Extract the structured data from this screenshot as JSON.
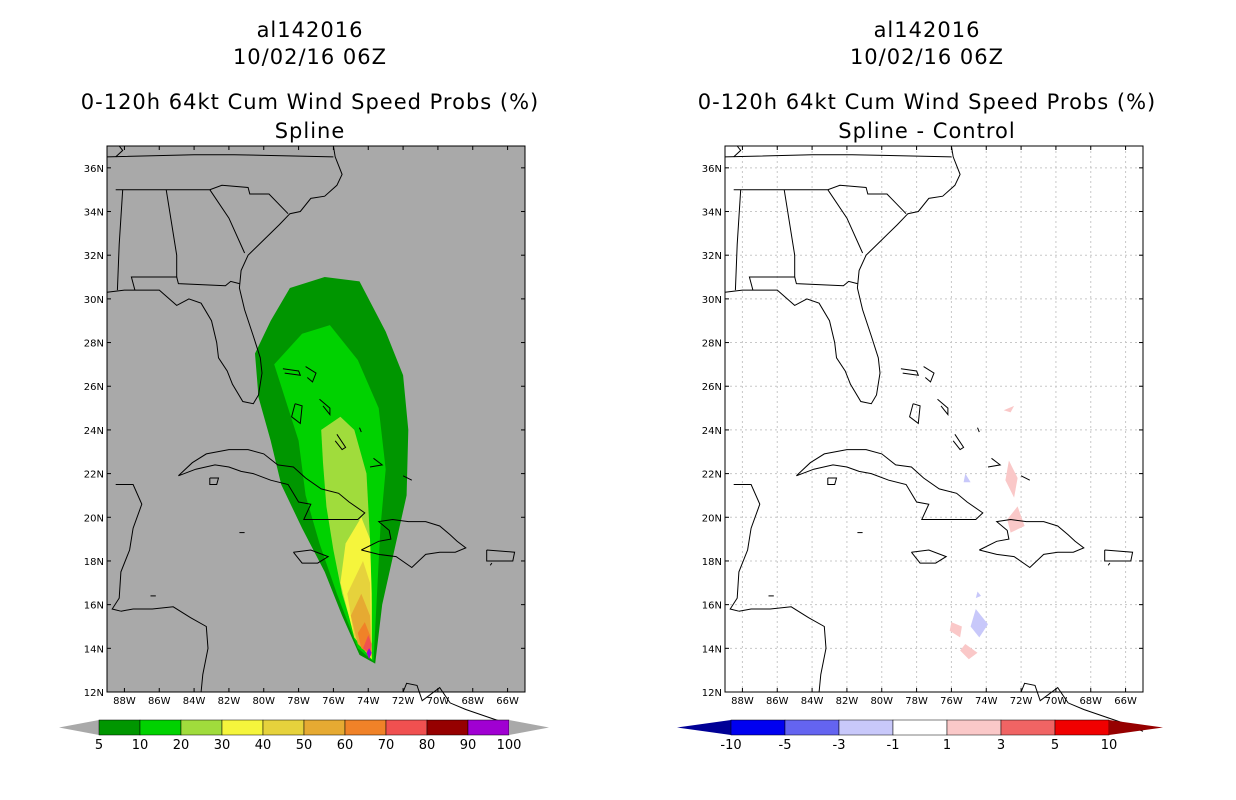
{
  "colors": {
    "ocean_bg": "#a9a9a9",
    "land_line": "#000000",
    "grid": "#c8c8c8"
  },
  "chart_data": [
    {
      "type": "heatmap",
      "title_lines": [
        "al142016",
        "10/02/16 06Z",
        "0-120h 64kt Cum Wind Speed Probs (%)",
        "Spline"
      ],
      "x_ticks": [
        "88W",
        "86W",
        "84W",
        "82W",
        "80W",
        "78W",
        "76W",
        "74W",
        "72W",
        "70W",
        "68W",
        "66W"
      ],
      "y_ticks": [
        "12N",
        "14N",
        "16N",
        "18N",
        "20N",
        "22N",
        "24N",
        "26N",
        "28N",
        "30N",
        "32N",
        "34N",
        "36N"
      ],
      "xlim": [
        -89,
        -65
      ],
      "ylim": [
        12,
        37
      ],
      "colorbar": {
        "labels": [
          "5",
          "10",
          "20",
          "30",
          "40",
          "50",
          "60",
          "70",
          "80",
          "90",
          "100"
        ],
        "colors": [
          "#009600",
          "#00d200",
          "#a0dc3c",
          "#f5f53c",
          "#e6d23c",
          "#e6aa32",
          "#f08228",
          "#f05050",
          "#960000",
          "#a000d2"
        ]
      },
      "contours": [
        {
          "level": 5,
          "color": "#009600",
          "points": [
            [
              -80.5,
              27.5
            ],
            [
              -79.6,
              29.0
            ],
            [
              -78.5,
              30.5
            ],
            [
              -76.5,
              31.0
            ],
            [
              -74.5,
              30.8
            ],
            [
              -73.0,
              28.5
            ],
            [
              -72.0,
              26.5
            ],
            [
              -71.7,
              24.0
            ],
            [
              -71.8,
              21.0
            ],
            [
              -72.5,
              18.5
            ],
            [
              -73.2,
              16.0
            ],
            [
              -73.6,
              13.3
            ],
            [
              -74.5,
              13.7
            ],
            [
              -75.5,
              15.5
            ],
            [
              -76.5,
              17.5
            ],
            [
              -77.8,
              19.5
            ],
            [
              -79.0,
              21.5
            ],
            [
              -79.6,
              23.5
            ],
            [
              -80.3,
              25.5
            ]
          ]
        },
        {
          "level": 10,
          "color": "#00d200",
          "points": [
            [
              -79.4,
              27.0
            ],
            [
              -77.8,
              28.4
            ],
            [
              -76.2,
              28.8
            ],
            [
              -74.6,
              27.2
            ],
            [
              -73.4,
              25.0
            ],
            [
              -73.0,
              22.2
            ],
            [
              -73.3,
              19.5
            ],
            [
              -73.5,
              16.5
            ],
            [
              -73.7,
              13.4
            ],
            [
              -74.6,
              14.0
            ],
            [
              -75.8,
              16.5
            ],
            [
              -76.8,
              18.8
            ],
            [
              -77.6,
              21.0
            ],
            [
              -78.0,
              23.5
            ],
            [
              -78.8,
              25.5
            ]
          ]
        },
        {
          "level": 20,
          "color": "#a0dc3c",
          "points": [
            [
              -76.7,
              24.0
            ],
            [
              -75.6,
              24.6
            ],
            [
              -74.8,
              24.0
            ],
            [
              -74.1,
              22.0
            ],
            [
              -73.9,
              19.0
            ],
            [
              -73.8,
              16.0
            ],
            [
              -73.8,
              13.5
            ],
            [
              -74.7,
              14.4
            ],
            [
              -75.5,
              16.5
            ],
            [
              -76.0,
              18.5
            ],
            [
              -76.4,
              20.5
            ],
            [
              -76.6,
              22.5
            ]
          ]
        },
        {
          "level": 30,
          "color": "#f5f53c",
          "points": [
            [
              -74.4,
              20.0
            ],
            [
              -73.9,
              19.0
            ],
            [
              -73.8,
              16.5
            ],
            [
              -73.8,
              13.5
            ],
            [
              -74.8,
              14.5
            ],
            [
              -75.6,
              17.0
            ],
            [
              -75.3,
              18.8
            ]
          ]
        },
        {
          "level": 40,
          "color": "#e6d23c",
          "points": [
            [
              -74.3,
              18.0
            ],
            [
              -73.9,
              17.0
            ],
            [
              -73.8,
              13.6
            ],
            [
              -74.8,
              14.5
            ],
            [
              -75.2,
              16.5
            ]
          ]
        },
        {
          "level": 50,
          "color": "#e6aa32",
          "points": [
            [
              -74.4,
              16.5
            ],
            [
              -73.9,
              15.5
            ],
            [
              -73.8,
              13.6
            ],
            [
              -74.6,
              14.2
            ],
            [
              -75.0,
              15.5
            ]
          ]
        },
        {
          "level": 60,
          "color": "#f08228",
          "points": [
            [
              -74.2,
              15.2
            ],
            [
              -73.9,
              14.6
            ],
            [
              -73.8,
              13.7
            ],
            [
              -74.4,
              14.0
            ],
            [
              -74.6,
              14.7
            ]
          ]
        },
        {
          "level": 70,
          "color": "#f05050",
          "points": [
            [
              -74.0,
              14.6
            ],
            [
              -73.8,
              14.2
            ],
            [
              -73.85,
              13.7
            ],
            [
              -74.3,
              14.0
            ]
          ]
        },
        {
          "level": 90,
          "color": "#a000d2",
          "points": [
            [
              -73.95,
              14.0
            ],
            [
              -73.8,
              13.8
            ],
            [
              -73.95,
              13.5
            ],
            [
              -74.1,
              13.8
            ]
          ]
        }
      ]
    },
    {
      "type": "heatmap",
      "title_lines": [
        "al142016",
        "10/02/16 06Z",
        "0-120h 64kt Cum Wind Speed Probs (%)",
        "Spline - Control"
      ],
      "x_ticks": [
        "88W",
        "86W",
        "84W",
        "82W",
        "80W",
        "78W",
        "76W",
        "74W",
        "72W",
        "70W",
        "68W",
        "66W"
      ],
      "y_ticks": [
        "12N",
        "14N",
        "16N",
        "18N",
        "20N",
        "22N",
        "24N",
        "26N",
        "28N",
        "30N",
        "32N",
        "34N",
        "36N"
      ],
      "xlim": [
        -89,
        -65
      ],
      "ylim": [
        12,
        37
      ],
      "colorbar": {
        "labels": [
          "-10",
          "-5",
          "-3",
          "-1",
          "1",
          "3",
          "5",
          "10"
        ],
        "colors": [
          "#000096",
          "#0000f0",
          "#6464f0",
          "#c8c8fa",
          "#ffffff",
          "#fac8c8",
          "#f06464",
          "#f00000",
          "#960000"
        ]
      },
      "contours": [
        {
          "level": 1,
          "color": "#fac8c8",
          "points": [
            [
              -73.0,
              24.9
            ],
            [
              -72.4,
              25.1
            ],
            [
              -72.6,
              24.8
            ]
          ]
        },
        {
          "level": 1,
          "color": "#fac8c8",
          "points": [
            [
              -72.7,
              22.6
            ],
            [
              -72.2,
              21.8
            ],
            [
              -72.4,
              20.9
            ],
            [
              -72.9,
              21.7
            ]
          ]
        },
        {
          "level": 1,
          "color": "#fac8c8",
          "points": [
            [
              -72.2,
              20.5
            ],
            [
              -71.8,
              19.6
            ],
            [
              -72.6,
              19.3
            ],
            [
              -72.8,
              19.9
            ]
          ]
        },
        {
          "level": -1,
          "color": "#c8c8fa",
          "points": [
            [
              -75.2,
              22.0
            ],
            [
              -74.9,
              21.6
            ],
            [
              -75.3,
              21.6
            ]
          ]
        },
        {
          "level": -1,
          "color": "#c8c8fa",
          "points": [
            [
              -74.6,
              15.8
            ],
            [
              -73.9,
              15.1
            ],
            [
              -74.4,
              14.5
            ],
            [
              -74.9,
              15.0
            ]
          ]
        },
        {
          "level": -1,
          "color": "#c8c8fa",
          "points": [
            [
              -74.5,
              16.6
            ],
            [
              -74.3,
              16.4
            ],
            [
              -74.6,
              16.3
            ]
          ]
        },
        {
          "level": 1,
          "color": "#fac8c8",
          "points": [
            [
              -76.0,
              15.2
            ],
            [
              -75.4,
              15.0
            ],
            [
              -75.5,
              14.5
            ],
            [
              -76.1,
              14.8
            ]
          ]
        },
        {
          "level": 1,
          "color": "#fac8c8",
          "points": [
            [
              -75.2,
              14.2
            ],
            [
              -74.5,
              13.8
            ],
            [
              -75.0,
              13.5
            ],
            [
              -75.5,
              13.9
            ]
          ]
        }
      ]
    }
  ]
}
